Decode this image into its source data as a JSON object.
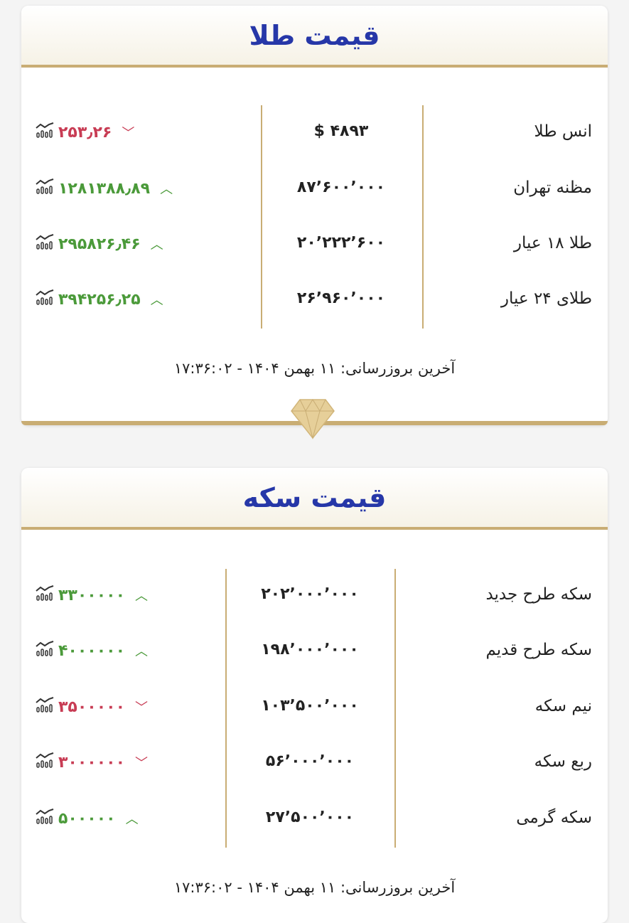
{
  "gold": {
    "title": "قیمت طلا",
    "updated": "آخرین بروزرسانی: ۱۱ بهمن ۱۴۰۴ - ۱۷:۳۶:۰۲",
    "rows": [
      {
        "name": "انس طلا",
        "price": "$ ۴۸۹۳",
        "change": "۲۵۳٫۲۶",
        "dir": "down"
      },
      {
        "name": "مظنه تهران",
        "price": "۸۷٬۶۰۰٬۰۰۰",
        "change": "۱۲۸۱۳۸۸٫۸۹",
        "dir": "up"
      },
      {
        "name": "طلا ۱۸ عیار",
        "price": "۲۰٬۲۲۲٬۶۰۰",
        "change": "۲۹۵۸۲۶٫۴۶",
        "dir": "up"
      },
      {
        "name": "طلای ۲۴ عیار",
        "price": "۲۶٬۹۶۰٬۰۰۰",
        "change": "۳۹۴۲۵۶٫۲۵",
        "dir": "up"
      }
    ]
  },
  "coin": {
    "title": "قیمت سکه",
    "updated": "آخرین بروزرسانی: ۱۱ بهمن ۱۴۰۴ - ۱۷:۳۶:۰۲",
    "rows": [
      {
        "name": "سکه طرح جدید",
        "price": "۲۰۲٬۰۰۰٬۰۰۰",
        "change": "۳۳۰۰۰۰۰",
        "dir": "up"
      },
      {
        "name": "سکه طرح قدیم",
        "price": "۱۹۸٬۰۰۰٬۰۰۰",
        "change": "۴۰۰۰۰۰۰",
        "dir": "up"
      },
      {
        "name": "نیم سکه",
        "price": "۱۰۳٬۵۰۰٬۰۰۰",
        "change": "۳۵۰۰۰۰۰",
        "dir": "down"
      },
      {
        "name": "ربع سکه",
        "price": "۵۶٬۰۰۰٬۰۰۰",
        "change": "۳۰۰۰۰۰۰",
        "dir": "down"
      },
      {
        "name": "سکه گرمی",
        "price": "۲۷٬۵۰۰٬۰۰۰",
        "change": "۵۰۰۰۰۰",
        "dir": "up"
      }
    ]
  },
  "colors": {
    "up": "#4b9a3a",
    "down": "#c83c54",
    "gold": "#c9ad74",
    "title": "#2637a8"
  }
}
